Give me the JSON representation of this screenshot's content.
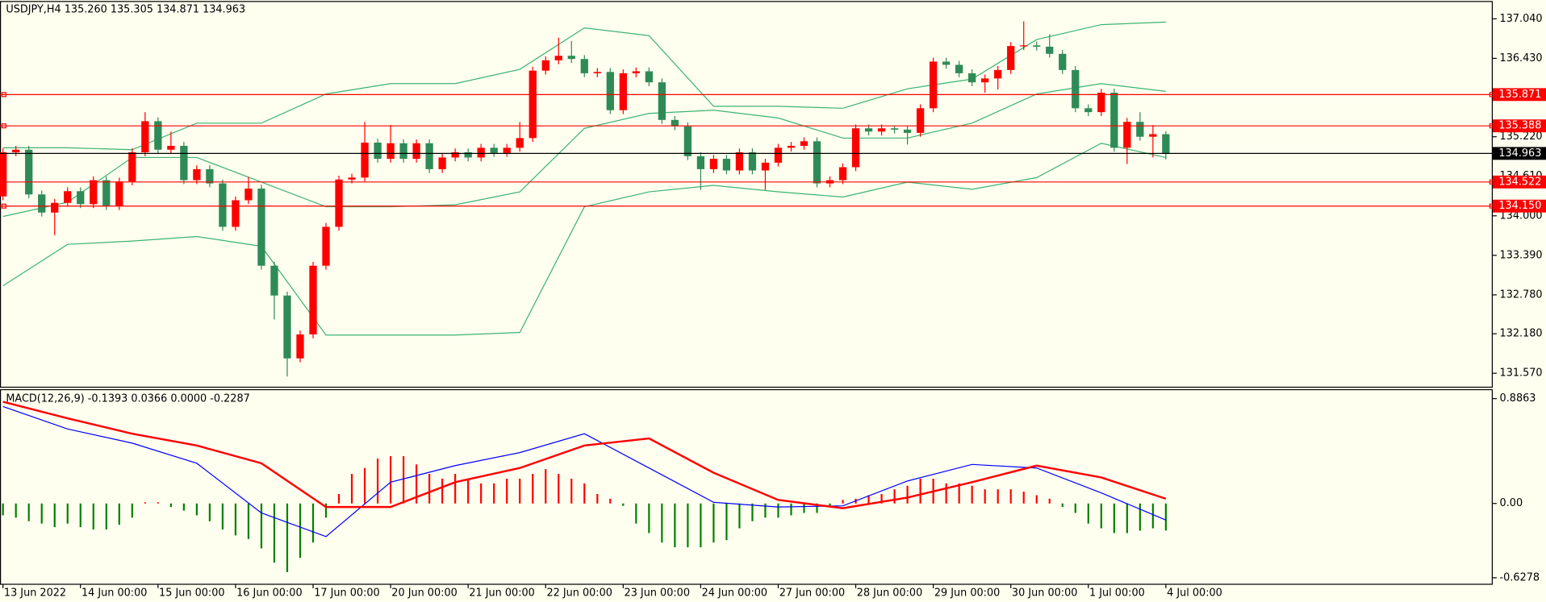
{
  "chart_data": [
    {
      "type": "candlestick",
      "title": "USDJPY,H4  135.260 135.305 134.871 134.963",
      "up_color": "#ff0000",
      "down_color": "#2e8b57",
      "candles": [
        [
          134.3,
          135.04,
          134.24,
          134.98
        ],
        [
          134.98,
          135.08,
          134.92,
          135.02
        ],
        [
          135.02,
          135.08,
          134.27,
          134.33
        ],
        [
          134.33,
          134.39,
          133.99,
          134.05
        ],
        [
          134.05,
          134.26,
          133.7,
          134.2
        ],
        [
          134.2,
          134.44,
          134.14,
          134.38
        ],
        [
          134.38,
          134.44,
          134.12,
          134.18
        ],
        [
          134.18,
          134.61,
          134.12,
          134.55
        ],
        [
          134.55,
          134.61,
          134.09,
          134.15
        ],
        [
          134.15,
          134.59,
          134.09,
          134.53
        ],
        [
          134.53,
          135.04,
          134.47,
          134.98
        ],
        [
          134.98,
          135.6,
          134.92,
          135.46
        ],
        [
          135.46,
          135.52,
          134.96,
          135.02
        ],
        [
          135.02,
          135.3,
          134.96,
          135.08
        ],
        [
          135.08,
          135.14,
          134.49,
          134.55
        ],
        [
          134.55,
          134.78,
          134.49,
          134.72
        ],
        [
          134.72,
          134.78,
          134.44,
          134.5
        ],
        [
          134.5,
          134.56,
          133.77,
          133.83
        ],
        [
          133.83,
          134.3,
          133.77,
          134.24
        ],
        [
          134.24,
          134.6,
          134.18,
          134.42
        ],
        [
          134.42,
          134.48,
          133.17,
          133.23
        ],
        [
          133.23,
          133.29,
          132.4,
          132.77
        ],
        [
          132.77,
          132.83,
          131.52,
          131.8
        ],
        [
          131.8,
          132.23,
          131.74,
          132.17
        ],
        [
          132.17,
          133.29,
          132.11,
          133.23
        ],
        [
          133.23,
          133.89,
          133.17,
          133.83
        ],
        [
          133.83,
          134.62,
          133.77,
          134.56
        ],
        [
          134.56,
          134.65,
          134.5,
          134.59
        ],
        [
          134.59,
          135.45,
          134.53,
          135.13
        ],
        [
          135.13,
          135.19,
          134.82,
          134.88
        ],
        [
          134.88,
          135.4,
          134.82,
          135.12
        ],
        [
          135.12,
          135.18,
          134.82,
          134.88
        ],
        [
          134.88,
          135.18,
          134.82,
          135.12
        ],
        [
          135.12,
          135.18,
          134.66,
          134.72
        ],
        [
          134.72,
          134.96,
          134.66,
          134.9
        ],
        [
          134.9,
          135.04,
          134.84,
          134.98
        ],
        [
          134.98,
          135.04,
          134.84,
          134.9
        ],
        [
          134.9,
          135.11,
          134.84,
          135.05
        ],
        [
          135.05,
          135.11,
          134.91,
          134.97
        ],
        [
          134.97,
          135.11,
          134.91,
          135.05
        ],
        [
          135.05,
          135.45,
          134.99,
          135.2
        ],
        [
          135.2,
          136.3,
          135.14,
          136.24
        ],
        [
          136.24,
          136.46,
          136.18,
          136.4
        ],
        [
          136.4,
          136.75,
          136.34,
          136.47
        ],
        [
          136.47,
          136.7,
          136.36,
          136.42
        ],
        [
          136.42,
          136.48,
          136.14,
          136.2
        ],
        [
          136.2,
          136.28,
          136.14,
          136.22
        ],
        [
          136.22,
          136.28,
          135.57,
          135.63
        ],
        [
          135.63,
          136.26,
          135.57,
          136.2
        ],
        [
          136.2,
          136.29,
          136.14,
          136.23
        ],
        [
          136.23,
          136.29,
          136.0,
          136.06
        ],
        [
          136.06,
          136.12,
          135.42,
          135.48
        ],
        [
          135.48,
          135.54,
          135.32,
          135.38
        ],
        [
          135.38,
          135.44,
          134.86,
          134.92
        ],
        [
          134.92,
          134.98,
          134.4,
          134.72
        ],
        [
          134.72,
          134.94,
          134.66,
          134.88
        ],
        [
          134.88,
          134.94,
          134.64,
          134.7
        ],
        [
          134.7,
          135.04,
          134.64,
          134.98
        ],
        [
          134.98,
          135.04,
          134.64,
          134.7
        ],
        [
          134.7,
          134.88,
          134.4,
          134.82
        ],
        [
          134.82,
          135.11,
          134.76,
          135.05
        ],
        [
          135.05,
          135.14,
          134.99,
          135.08
        ],
        [
          135.08,
          135.21,
          135.02,
          135.15
        ],
        [
          135.15,
          135.21,
          134.44,
          134.5
        ],
        [
          134.5,
          134.61,
          134.44,
          134.55
        ],
        [
          134.55,
          134.81,
          134.49,
          134.75
        ],
        [
          134.75,
          135.41,
          134.69,
          135.35
        ],
        [
          135.35,
          135.41,
          135.24,
          135.3
        ],
        [
          135.3,
          135.41,
          135.24,
          135.35
        ],
        [
          135.35,
          135.39,
          135.27,
          135.33
        ],
        [
          135.33,
          135.39,
          135.1,
          135.28
        ],
        [
          135.28,
          135.72,
          135.22,
          135.66
        ],
        [
          135.66,
          136.44,
          135.6,
          136.38
        ],
        [
          136.38,
          136.44,
          136.27,
          136.33
        ],
        [
          136.33,
          136.39,
          136.14,
          136.2
        ],
        [
          136.2,
          136.26,
          136.0,
          136.06
        ],
        [
          136.06,
          136.18,
          135.9,
          136.12
        ],
        [
          136.12,
          136.31,
          135.95,
          136.25
        ],
        [
          136.25,
          136.68,
          136.19,
          136.62
        ],
        [
          136.62,
          137.0,
          136.56,
          136.63
        ],
        [
          136.63,
          136.69,
          136.55,
          136.61
        ],
        [
          136.61,
          136.8,
          136.44,
          136.5
        ],
        [
          136.5,
          136.56,
          136.19,
          136.25
        ],
        [
          136.25,
          136.31,
          135.6,
          135.66
        ],
        [
          135.66,
          135.72,
          135.54,
          135.6
        ],
        [
          135.6,
          135.96,
          135.54,
          135.9
        ],
        [
          135.9,
          135.96,
          134.99,
          135.05
        ],
        [
          135.05,
          135.51,
          134.8,
          135.45
        ],
        [
          135.45,
          135.6,
          135.16,
          135.22
        ],
        [
          135.22,
          135.4,
          134.9,
          135.26
        ],
        [
          135.26,
          135.305,
          134.871,
          134.963
        ]
      ],
      "series": [
        {
          "color": "#3cb371",
          "x": [
            0,
            5,
            10,
            15,
            20,
            25,
            30,
            35,
            40,
            45,
            50,
            55,
            60,
            65,
            70,
            75,
            80,
            85,
            90
          ],
          "values": [
            135.05,
            135.05,
            135.02,
            135.43,
            135.43,
            135.88,
            136.04,
            136.04,
            136.26,
            136.9,
            136.78,
            135.69,
            135.69,
            135.66,
            135.96,
            136.11,
            136.72,
            136.95,
            136.99
          ]
        },
        {
          "color": "#3cb371",
          "x": [
            0,
            5,
            10,
            15,
            20,
            25,
            30,
            35,
            40,
            45,
            50,
            55,
            60,
            65,
            70,
            75,
            80,
            85,
            90
          ],
          "values": [
            133.99,
            134.21,
            134.9,
            134.9,
            134.52,
            134.14,
            134.14,
            134.17,
            134.37,
            135.35,
            135.58,
            135.63,
            135.51,
            135.2,
            135.2,
            135.43,
            135.88,
            136.04,
            135.92
          ]
        },
        {
          "color": "#3cb371",
          "x": [
            0,
            5,
            10,
            15,
            20,
            25,
            30,
            35,
            40,
            45,
            50,
            55,
            60,
            65,
            70,
            75,
            80,
            85,
            90
          ],
          "values": [
            132.92,
            133.56,
            133.61,
            133.68,
            133.53,
            132.16,
            132.16,
            132.16,
            132.2,
            134.14,
            134.37,
            134.47,
            134.37,
            134.29,
            134.52,
            134.41,
            134.59,
            135.12,
            134.9
          ]
        }
      ],
      "hlines": [
        135.871,
        135.388,
        134.522,
        {
          "value": 134.15,
          "label": "134.150"
        }
      ],
      "hline_color": "#ff0000",
      "price_line": 134.963,
      "price_line_color": "#000000",
      "xlim": [
        -0.23,
        115.3
      ],
      "ylim": [
        131.355,
        137.3
      ],
      "yticks": [
        {
          "value": 137.04,
          "label": "137.040"
        },
        {
          "value": 136.43,
          "label": "136.430"
        },
        {
          "value": 135.22,
          "label": "135.220"
        },
        {
          "value": 134.61,
          "label": "134.610"
        },
        {
          "value": 134.0,
          "label": "134.000"
        },
        {
          "value": 133.39,
          "label": "133.390"
        },
        {
          "value": 132.78,
          "label": "132.780"
        },
        {
          "value": 132.18,
          "label": "132.180"
        },
        {
          "value": 131.57,
          "label": "131.570"
        }
      ]
    },
    {
      "type": "macd",
      "title": "MACD(12,26,9) -0.1393 0.0366 0.0000 -0.2287",
      "hist_up_color": "#ff0000",
      "hist_down_color": "#008000",
      "histogram": [
        -0.1,
        -0.12,
        -0.15,
        -0.17,
        -0.2,
        -0.17,
        -0.2,
        -0.22,
        -0.22,
        -0.18,
        -0.12,
        0.01,
        0.01,
        -0.03,
        -0.06,
        -0.1,
        -0.15,
        -0.22,
        -0.27,
        -0.3,
        -0.38,
        -0.5,
        -0.58,
        -0.46,
        -0.33,
        -0.12,
        0.08,
        0.25,
        0.3,
        0.38,
        0.4,
        0.4,
        0.33,
        0.25,
        0.21,
        0.25,
        0.21,
        0.17,
        0.17,
        0.21,
        0.21,
        0.25,
        0.29,
        0.25,
        0.21,
        0.17,
        0.08,
        0.04,
        -0.02,
        -0.17,
        -0.25,
        -0.33,
        -0.37,
        -0.37,
        -0.37,
        -0.33,
        -0.31,
        -0.21,
        -0.15,
        -0.12,
        -0.12,
        -0.1,
        -0.08,
        -0.08,
        -0.03,
        0.03,
        0.04,
        0.07,
        0.08,
        0.12,
        0.15,
        0.21,
        0.21,
        0.17,
        0.17,
        0.15,
        0.12,
        0.12,
        0.12,
        0.1,
        0.07,
        0.04,
        -0.03,
        -0.08,
        -0.17,
        -0.21,
        -0.25,
        -0.25,
        -0.23,
        -0.21,
        -0.2287
      ],
      "series": [
        {
          "color": "#0000ff",
          "width": 1,
          "x": [
            0,
            5,
            10,
            15,
            20,
            25,
            30,
            35,
            40,
            45,
            50,
            55,
            60,
            65,
            70,
            75,
            80,
            85,
            90
          ],
          "values": [
            0.82,
            0.63,
            0.51,
            0.34,
            -0.08,
            -0.28,
            0.18,
            0.32,
            0.43,
            0.59,
            0.3,
            0.01,
            -0.03,
            -0.02,
            0.19,
            0.33,
            0.3,
            0.09,
            -0.14
          ]
        },
        {
          "color": "#ff0000",
          "width": 2,
          "x": [
            0,
            5,
            10,
            15,
            20,
            25,
            30,
            35,
            40,
            45,
            50,
            55,
            60,
            65,
            70,
            75,
            80,
            85,
            90
          ],
          "values": [
            0.86,
            0.72,
            0.59,
            0.49,
            0.34,
            -0.03,
            -0.03,
            0.18,
            0.3,
            0.49,
            0.55,
            0.26,
            0.03,
            -0.04,
            0.05,
            0.18,
            0.32,
            0.22,
            0.04
          ]
        }
      ],
      "xlim": [
        -0.23,
        115.3
      ],
      "ylim": [
        -0.683,
        0.958
      ],
      "yticks": [
        0.8863,
        {
          "value": 0,
          "label": "0.00"
        },
        -0.6278
      ],
      "xticks": [
        {
          "value": 0,
          "label": "13 Jun 2022"
        },
        {
          "value": 6,
          "label": "14 Jun 00:00"
        },
        {
          "value": 12,
          "label": "15 Jun 00:00"
        },
        {
          "value": 18,
          "label": "16 Jun 00:00"
        },
        {
          "value": 24,
          "label": "17 Jun 00:00"
        },
        {
          "value": 30,
          "label": "20 Jun 00:00"
        },
        {
          "value": 36,
          "label": "21 Jun 00:00"
        },
        {
          "value": 42,
          "label": "22 Jun 00:00"
        },
        {
          "value": 48,
          "label": "23 Jun 00:00"
        },
        {
          "value": 54,
          "label": "24 Jun 00:00"
        },
        {
          "value": 60,
          "label": "27 Jun 00:00"
        },
        {
          "value": 66,
          "label": "28 Jun 00:00"
        },
        {
          "value": 72,
          "label": "29 Jun 00:00"
        },
        {
          "value": 78,
          "label": "30 Jun 00:00"
        },
        {
          "value": 84,
          "label": "1 Jul 00:00"
        },
        {
          "value": 90,
          "label": "4 Jul 00:00"
        }
      ]
    }
  ]
}
